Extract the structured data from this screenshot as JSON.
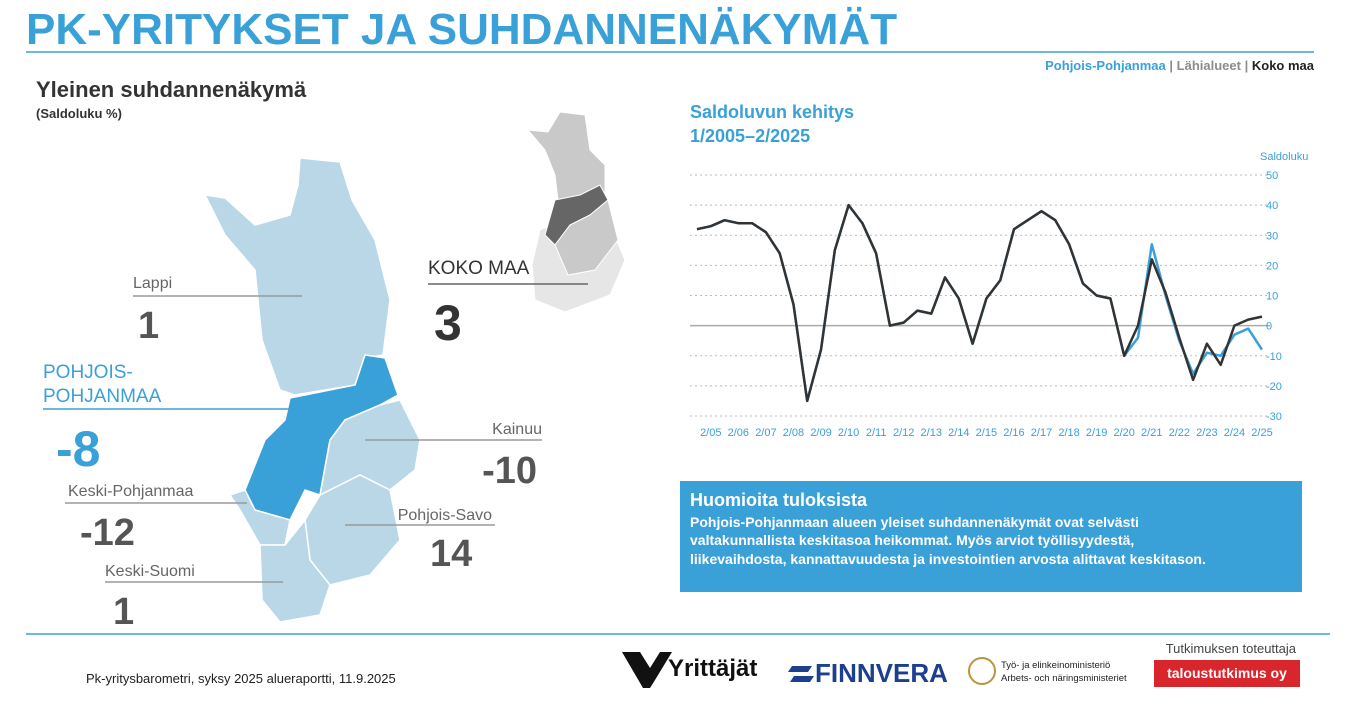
{
  "header": {
    "title": "PK-YRITYKSET JA SUHDANNENÄKYMÄT"
  },
  "map": {
    "title": "Yleinen suhdannenäkymä",
    "subtitle": "(Saldoluku %)",
    "regions": [
      {
        "name_lines": [
          "Lappi"
        ],
        "value": 1
      },
      {
        "name_lines": [
          "POHJOIS-",
          "POHJANMAA"
        ],
        "value": -8
      },
      {
        "name_lines": [
          "Kainuu"
        ],
        "value": -10
      },
      {
        "name_lines": [
          "Keski-Pohjanmaa"
        ],
        "value": -12
      },
      {
        "name_lines": [
          "Pohjois-Savo"
        ],
        "value": 14
      },
      {
        "name_lines": [
          "Keski-Suomi"
        ],
        "value": 1
      }
    ],
    "country": {
      "name": "KOKO MAA",
      "value": 3
    }
  },
  "chart_data": {
    "type": "line",
    "title": [
      "Saldoluvun kehitys",
      "1/2005–2/2025"
    ],
    "y_label": "Saldoluku",
    "legend_separator": "|",
    "legend_middle": {
      "name": "Lähialueet",
      "color": "#8c8c8c"
    },
    "categories": [
      null,
      "2/05",
      null,
      "2/06",
      null,
      "2/07",
      null,
      "2/08",
      null,
      "2/09",
      null,
      "2/10",
      null,
      "2/11",
      null,
      "2/12",
      null,
      "2/13",
      null,
      "2/14",
      null,
      "2/15",
      null,
      "2/16",
      null,
      "2/17",
      null,
      "2/18",
      null,
      "2/19",
      null,
      "2/20",
      null,
      "2/21",
      null,
      "2/22",
      null,
      "2/23",
      null,
      "2/24",
      null,
      "2/25"
    ],
    "series": [
      {
        "name": "Pohjois-Pohjanmaa",
        "color": "#3aa0d8",
        "values": [
          32,
          33,
          35,
          34,
          34,
          31,
          24,
          7,
          -25,
          -8,
          25,
          40,
          34,
          24,
          0,
          1,
          5,
          4,
          16,
          9,
          -6,
          9,
          15,
          32,
          35,
          38,
          35,
          27,
          14,
          10,
          9,
          -10,
          -4,
          27,
          10,
          -5,
          -16,
          -9,
          -10,
          -3,
          -1,
          -8
        ]
      },
      {
        "name": "Koko maa",
        "color": "#333333",
        "values": [
          32,
          33,
          35,
          34,
          34,
          31,
          24,
          7,
          -25,
          -8,
          25,
          40,
          34,
          24,
          0,
          1,
          5,
          4,
          16,
          9,
          -6,
          9,
          15,
          32,
          35,
          38,
          35,
          27,
          14,
          10,
          9,
          -10,
          0,
          22,
          11,
          -4,
          -18,
          -6,
          -13,
          0,
          2,
          3
        ]
      }
    ],
    "ylim": [
      -30,
      50
    ],
    "yticks": [
      -30,
      -20,
      -10,
      0,
      10,
      20,
      30,
      40,
      50
    ],
    "grid": true
  },
  "notes": {
    "title": "Huomioita tuloksista",
    "lines": [
      "Pohjois-Pohjanmaan alueen yleiset suhdannenäkymät ovat selvästi",
      "valtakunnallista keskitasoa heikommat. Myös arviot työllisyydestä,",
      "liikevaihdosta, kannattavuudesta ja investointien arvosta alittavat keskitason."
    ]
  },
  "footer": {
    "source": "Pk-yritysbarometri, syksy 2025 alueraportti, 11.9.2025",
    "logos": [
      "Yrittäjät",
      "FINNVERA"
    ],
    "ministry": [
      "Työ- ja elinkeinoministeriö",
      "Arbets- och näringsministeriet"
    ],
    "producer_label": "Tutkimuksen toteuttaja",
    "producer": "taloustutkimus oy"
  }
}
